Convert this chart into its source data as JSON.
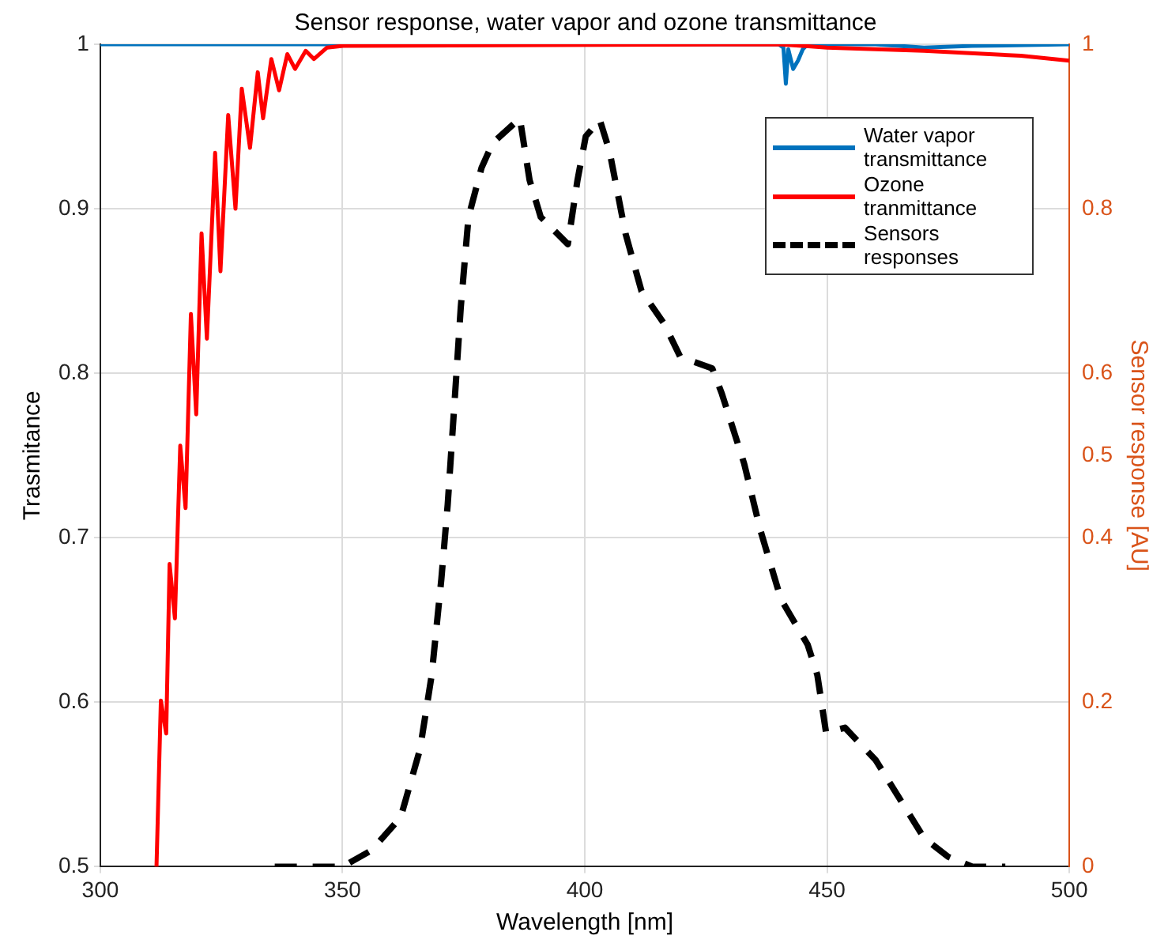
{
  "chart_data": {
    "type": "line",
    "title": "Sensor response, water vapor and ozone transmittance",
    "xlabel": "Wavelength [nm]",
    "ylabel": "Trasmitance",
    "y2label": "Sensor response [AU]",
    "xlim": [
      300,
      500
    ],
    "xticks": [
      300,
      350,
      400,
      450,
      500
    ],
    "ylim": [
      0.5,
      1
    ],
    "yticks": [
      0.5,
      0.6,
      0.7,
      0.8,
      0.9,
      1
    ],
    "y2lim": [
      0,
      1
    ],
    "y2ticks": [
      0,
      0.2,
      0.4,
      0.5,
      0.6,
      0.8,
      1
    ],
    "grid": true,
    "legend": "top right",
    "marker": "none",
    "series": [
      {
        "name": "Water vapor transmittance",
        "color": "#0072bd",
        "line_style": "solid",
        "x": [
          300,
          440,
          441,
          441.5,
          442,
          443,
          444,
          445,
          446,
          460,
          470,
          480,
          500
        ],
        "values": [
          1,
          1,
          0.998,
          0.976,
          0.997,
          0.985,
          0.99,
          0.997,
          1,
          1,
          0.998,
          0.999,
          1
        ]
      },
      {
        "name": "Ozone tranmittance",
        "color": "#ff0000",
        "line_style": "solid",
        "x": [
          311.6,
          312.5,
          313.6,
          314.3,
          315.4,
          316.5,
          317.6,
          318.7,
          319.8,
          320.9,
          322.0,
          323.7,
          324.8,
          326.4,
          327.9,
          329.2,
          330.9,
          332.5,
          333.6,
          335.3,
          336.9,
          338.6,
          340.2,
          342.4,
          344.1,
          346.8,
          350.1,
          440,
          450,
          470,
          490,
          500
        ],
        "values": [
          0.5,
          0.601,
          0.581,
          0.684,
          0.651,
          0.756,
          0.718,
          0.836,
          0.775,
          0.885,
          0.821,
          0.934,
          0.862,
          0.957,
          0.9,
          0.973,
          0.937,
          0.983,
          0.955,
          0.991,
          0.972,
          0.994,
          0.985,
          0.996,
          0.991,
          0.998,
          0.999,
          1,
          0.998,
          0.996,
          0.993,
          0.99
        ]
      },
      {
        "name": "Sensors responses",
        "color": "#000000",
        "line_style": "dashed",
        "axis": "y2",
        "x": [
          336,
          350,
          356,
          362,
          366,
          368.4,
          370.4,
          371.7,
          373.4,
          374.4,
          376,
          378.7,
          381,
          386.6,
          388.6,
          390.9,
          396.5,
          398.5,
          400.2,
          403.1,
          405.1,
          408.4,
          411.7,
          416.4,
          419.7,
          426.3,
          428.3,
          432.9,
          436.2,
          440.5,
          446,
          448,
          449.8,
          453.7,
          460,
          470,
          475,
          480,
          486.8
        ],
        "values": [
          0,
          0,
          0.02,
          0.06,
          0.143,
          0.233,
          0.35,
          0.44,
          0.59,
          0.68,
          0.79,
          0.85,
          0.88,
          0.91,
          0.835,
          0.79,
          0.757,
          0.835,
          0.888,
          0.908,
          0.87,
          0.77,
          0.7,
          0.66,
          0.62,
          0.606,
          0.575,
          0.49,
          0.41,
          0.325,
          0.27,
          0.233,
          0.163,
          0.169,
          0.13,
          0.035,
          0.012,
          0,
          0
        ]
      }
    ]
  }
}
